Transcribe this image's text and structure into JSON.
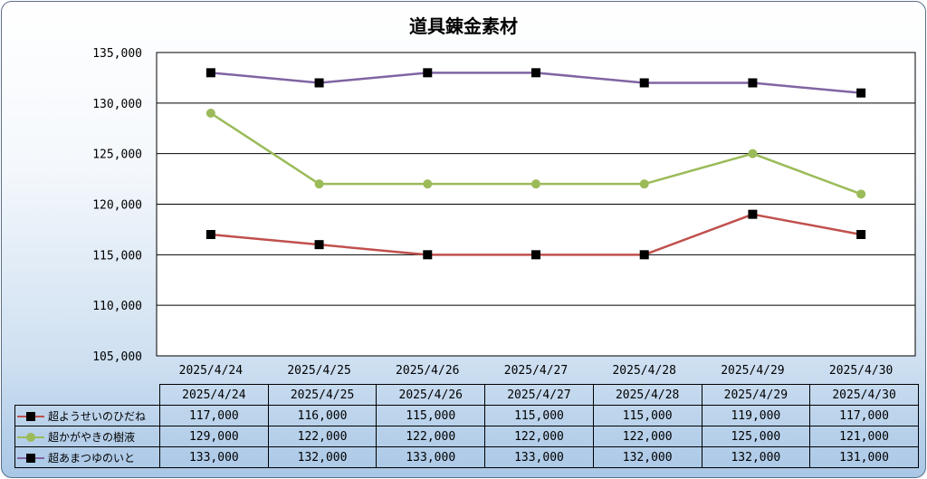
{
  "chart_data": {
    "type": "line",
    "title": "道具錬金素材",
    "categories": [
      "2025/4/24",
      "2025/4/25",
      "2025/4/26",
      "2025/4/27",
      "2025/4/28",
      "2025/4/29",
      "2025/4/30"
    ],
    "ylim": [
      105000,
      135000
    ],
    "yticks": [
      "105,000",
      "110,000",
      "115,000",
      "120,000",
      "125,000",
      "130,000",
      "135,000"
    ],
    "grid": true,
    "legend": "data-table",
    "series": [
      {
        "name": "超ようせいのひだね",
        "values": [
          117000,
          116000,
          115000,
          115000,
          115000,
          119000,
          117000
        ],
        "labels": [
          "117,000",
          "116,000",
          "115,000",
          "115,000",
          "115,000",
          "119,000",
          "117,000"
        ],
        "color": "#c0504d",
        "marker": "square"
      },
      {
        "name": "超かがやきの樹液",
        "values": [
          129000,
          122000,
          122000,
          122000,
          122000,
          125000,
          121000
        ],
        "labels": [
          "129,000",
          "122,000",
          "122,000",
          "122,000",
          "122,000",
          "125,000",
          "121,000"
        ],
        "color": "#9bbb59",
        "marker": "circle"
      },
      {
        "name": "超あまつゆのいと",
        "values": [
          133000,
          132000,
          133000,
          133000,
          132000,
          132000,
          131000
        ],
        "labels": [
          "133,000",
          "132,000",
          "133,000",
          "133,000",
          "132,000",
          "132,000",
          "131,000"
        ],
        "color": "#8064a2",
        "marker": "square"
      }
    ]
  }
}
